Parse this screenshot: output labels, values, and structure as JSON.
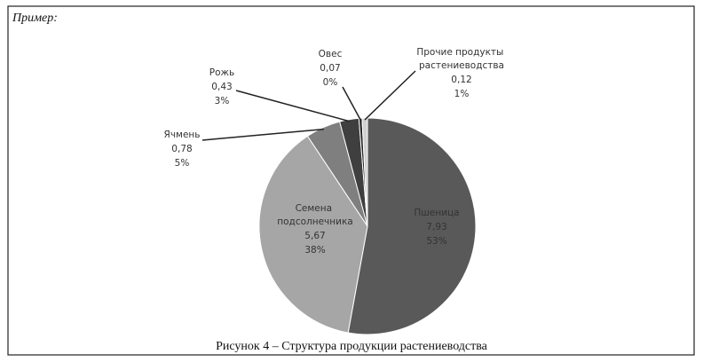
{
  "header": "Пример:",
  "chart_data": {
    "type": "pie",
    "caption": "Рисунок 4 – Структура продукции растениеводства",
    "categories": [
      "Пшеница",
      "Семена подсолнечника",
      "Ячмень",
      "Рожь",
      "Овес",
      "Прочие продукты растениеводства"
    ],
    "values": [
      7.93,
      5.67,
      0.78,
      0.43,
      0.07,
      0.12
    ],
    "value_labels": [
      "7,93",
      "5,67",
      "0,78",
      "0,43",
      "0,07",
      "0,12"
    ],
    "percent_labels": [
      "53%",
      "38%",
      "5%",
      "3%",
      "0%",
      "1%"
    ],
    "colors": [
      "#595959",
      "#a6a6a6",
      "#7f7f7f",
      "#3f3f3f",
      "#262626",
      "#d0d0d0"
    ]
  }
}
